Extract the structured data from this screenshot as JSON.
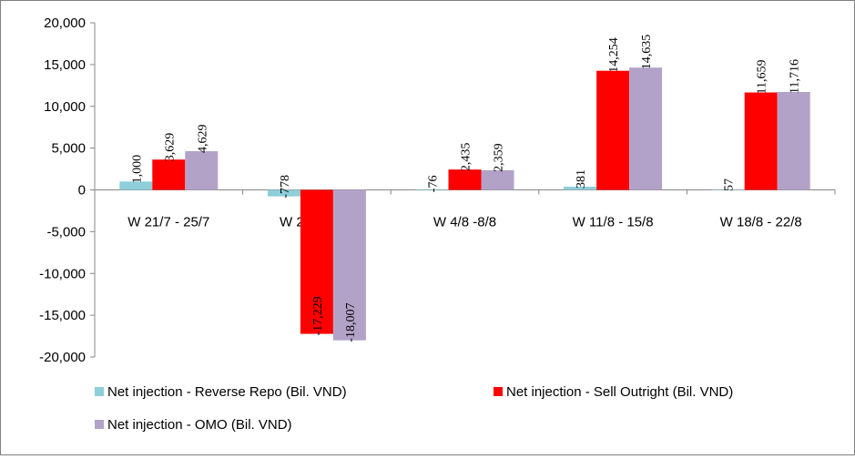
{
  "chart_data": {
    "type": "bar",
    "categories": [
      "W 21/7 - 25/7",
      "W 28/7 - 1/8",
      "W 4/8 -8/8",
      "W 11/8 - 15/8",
      "W 18/8 - 22/8"
    ],
    "series": [
      {
        "name": "Net injection - Reverse Repo (Bil. VND)",
        "color": "#8ECFD9",
        "values": [
          1000,
          -778,
          -76,
          381,
          57
        ],
        "labels": [
          "1,000",
          "-778",
          "-76",
          "381",
          "57"
        ]
      },
      {
        "name": "Net injection - Sell Outright (Bil. VND)",
        "color": "#FF0000",
        "values": [
          3629,
          -17229,
          2435,
          14254,
          11659
        ],
        "labels": [
          "3,629",
          "-17,229",
          "2,435",
          "14,254",
          "11,659"
        ]
      },
      {
        "name": "Net injection - OMO (Bil. VND)",
        "color": "#B3A2C7",
        "values": [
          4629,
          -18007,
          2359,
          14635,
          11716
        ],
        "labels": [
          "4,629",
          "-18,007",
          "2,359",
          "14,635",
          "11,716"
        ]
      }
    ],
    "ylim": [
      -20000,
      20000
    ],
    "yticks": [
      20000,
      15000,
      10000,
      5000,
      0,
      -5000,
      -10000,
      -15000,
      -20000
    ],
    "ytick_labels": [
      "20,000",
      "15,000",
      "10,000",
      "5,000",
      "0",
      "-5,000",
      "-10,000",
      "-15,000",
      "-20,000"
    ],
    "grid": false,
    "legend_position": "bottom"
  }
}
